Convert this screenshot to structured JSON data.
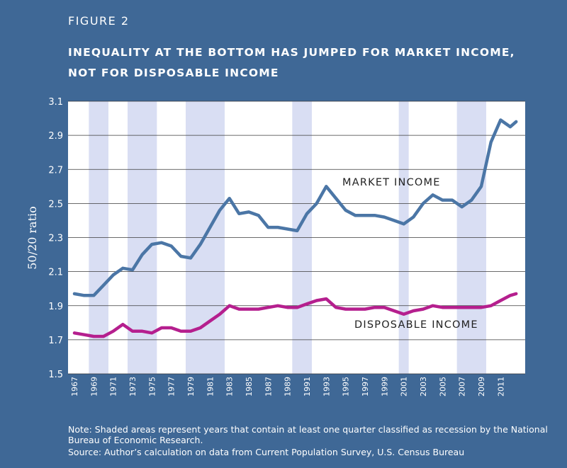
{
  "figure_label": "FIGURE 2",
  "title_lines": [
    "INEQUALITY AT THE BOTTOM HAS JUMPED FOR MARKET INCOME,",
    "NOT FOR DISPOSABLE INCOME"
  ],
  "note": "Note: Shaded areas represent years that contain at least one quarter classified as recession by the National Bureau of Economic Research.",
  "source": "Source: Author’s calculation on data from Current Population Survey, U.S. Census Bureau",
  "colors": {
    "background": "#3f6896",
    "plot_bg": "#ffffff",
    "recession": "#d9def3",
    "grid": "#3a3a3a",
    "market": "#4b76a6",
    "disposable": "#b51f8e",
    "text_dark": "#222222"
  },
  "chart_data": {
    "type": "line",
    "ylabel": "50/20 ratio",
    "xlim": [
      1967,
      2012
    ],
    "ylim": [
      1.5,
      3.1
    ],
    "yticks": [
      "1.5",
      "1.7",
      "1.9",
      "2.1",
      "2.3",
      "2.5",
      "2.7",
      "2.9",
      "3.1"
    ],
    "xticks": [
      "1967",
      "1969",
      "1971",
      "1973",
      "1975",
      "1977",
      "1979",
      "1981",
      "1983",
      "1985",
      "1987",
      "1989",
      "1991",
      "1993",
      "1995",
      "1997",
      "1999",
      "2001",
      "2003",
      "2005",
      "2007",
      "2009",
      "2011"
    ],
    "recessions": [
      [
        1969,
        1970
      ],
      [
        1973,
        1975
      ],
      [
        1979,
        1982
      ],
      [
        1990,
        1991
      ],
      [
        2001,
        2001
      ],
      [
        2007,
        2009
      ]
    ],
    "x": [
      1967,
      1968,
      1969,
      1970,
      1971,
      1972,
      1973,
      1974,
      1975,
      1976,
      1977,
      1978,
      1979,
      1980,
      1981,
      1982,
      1983,
      1984,
      1985,
      1986,
      1987,
      1988,
      1989,
      1990,
      1991,
      1992,
      1993,
      1994,
      1995,
      1996,
      1997,
      1998,
      1999,
      2000,
      2001,
      2002,
      2003,
      2004,
      2005,
      2006,
      2007,
      2008,
      2009,
      2010,
      2011,
      2012
    ],
    "series": [
      {
        "name": "MARKET INCOME",
        "values": [
          1.97,
          1.96,
          1.96,
          2.02,
          2.08,
          2.12,
          2.11,
          2.2,
          2.26,
          2.27,
          2.25,
          2.19,
          2.18,
          2.26,
          2.36,
          2.46,
          2.53,
          2.44,
          2.45,
          2.43,
          2.36,
          2.36,
          2.35,
          2.34,
          2.44,
          2.5,
          2.6,
          2.53,
          2.46,
          2.43,
          2.43,
          2.43,
          2.42,
          2.4,
          2.38,
          2.42,
          2.5,
          2.55,
          2.52,
          2.52,
          2.48,
          2.52,
          2.6,
          2.86,
          2.99,
          2.95
        ]
      },
      {
        "name": "DISPOSABLE INCOME",
        "values": [
          1.74,
          1.73,
          1.72,
          1.72,
          1.75,
          1.79,
          1.75,
          1.75,
          1.74,
          1.77,
          1.77,
          1.75,
          1.75,
          1.77,
          1.81,
          1.85,
          1.9,
          1.88,
          1.88,
          1.88,
          1.89,
          1.9,
          1.89,
          1.89,
          1.91,
          1.93,
          1.94,
          1.89,
          1.88,
          1.88,
          1.88,
          1.89,
          1.89,
          1.87,
          1.85,
          1.87,
          1.88,
          1.9,
          1.89,
          1.89,
          1.89,
          1.89,
          1.89,
          1.9,
          1.93,
          1.96
        ]
      }
    ],
    "final_x": [
      2012.6,
      2012.6
    ],
    "final_values": [
      2.98,
      1.97
    ]
  }
}
